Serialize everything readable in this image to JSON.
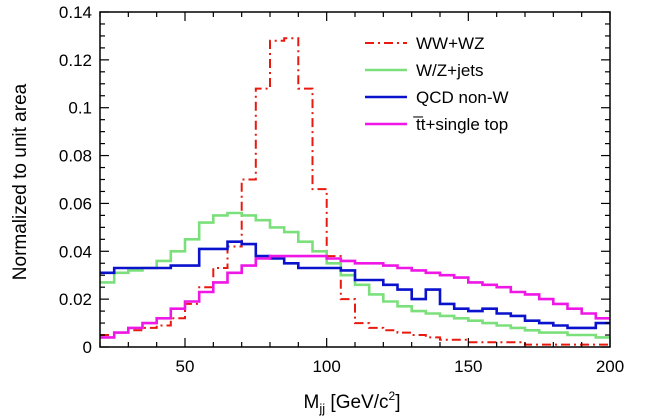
{
  "chart_data": {
    "type": "line",
    "xlabel": {
      "main": "M",
      "sub": "jj",
      "unit_pre": " [GeV/c",
      "unit_sup": "2",
      "unit_post": "]"
    },
    "ylabel": "Normalized to unit area",
    "xlim": [
      20,
      200
    ],
    "ylim": [
      0,
      0.14
    ],
    "xticks": [
      50,
      100,
      150,
      200
    ],
    "yticks": [
      0,
      0.02,
      0.04,
      0.06,
      0.08,
      0.1,
      0.12,
      0.14
    ],
    "xtick_labels": [
      "50",
      "100",
      "150",
      "200"
    ],
    "ytick_labels": [
      "0",
      "0.02",
      "0.04",
      "0.06",
      "0.08",
      "0.1",
      "0.12",
      "0.14"
    ],
    "grid": false,
    "legend_position": "top-right",
    "bin_edges": [
      20,
      25,
      30,
      35,
      40,
      45,
      50,
      55,
      60,
      65,
      70,
      75,
      80,
      85,
      90,
      95,
      100,
      105,
      110,
      115,
      120,
      125,
      130,
      135,
      140,
      145,
      150,
      155,
      160,
      165,
      170,
      175,
      180,
      185,
      190,
      195,
      200
    ],
    "series": [
      {
        "name": "WW+WZ",
        "color": "#e8190f",
        "style": "dashdot",
        "values": [
          0.005,
          0.006,
          0.007,
          0.008,
          0.009,
          0.012,
          0.018,
          0.025,
          0.033,
          0.042,
          0.07,
          0.108,
          0.128,
          0.129,
          0.108,
          0.066,
          0.038,
          0.02,
          0.01,
          0.008,
          0.007,
          0.006,
          0.005,
          0.004,
          0.003,
          0.003,
          0.002,
          0.002,
          0.002,
          0.002,
          0.001,
          0.001,
          0.001,
          0.001,
          0.001,
          0.001
        ]
      },
      {
        "name": "W/Z+jets",
        "color": "#7be07b",
        "style": "solid",
        "values": [
          0.027,
          0.031,
          0.032,
          0.033,
          0.036,
          0.04,
          0.045,
          0.052,
          0.055,
          0.056,
          0.055,
          0.053,
          0.05,
          0.048,
          0.044,
          0.04,
          0.035,
          0.03,
          0.026,
          0.022,
          0.019,
          0.017,
          0.015,
          0.014,
          0.013,
          0.012,
          0.011,
          0.01,
          0.009,
          0.008,
          0.007,
          0.006,
          0.006,
          0.005,
          0.005,
          0.004
        ]
      },
      {
        "name": "QCD non-W",
        "color": "#0a12cc",
        "style": "solid",
        "values": [
          0.031,
          0.033,
          0.033,
          0.033,
          0.033,
          0.034,
          0.034,
          0.041,
          0.041,
          0.044,
          0.043,
          0.038,
          0.037,
          0.035,
          0.033,
          0.033,
          0.033,
          0.032,
          0.028,
          0.028,
          0.026,
          0.024,
          0.02,
          0.024,
          0.018,
          0.016,
          0.015,
          0.016,
          0.014,
          0.013,
          0.011,
          0.01,
          0.009,
          0.008,
          0.008,
          0.01
        ]
      },
      {
        "name": "t̅t+single top",
        "color": "#ee17e6",
        "style": "solid",
        "values": [
          0.004,
          0.006,
          0.008,
          0.01,
          0.012,
          0.016,
          0.019,
          0.023,
          0.027,
          0.031,
          0.034,
          0.037,
          0.038,
          0.038,
          0.038,
          0.038,
          0.037,
          0.036,
          0.035,
          0.035,
          0.034,
          0.033,
          0.032,
          0.031,
          0.03,
          0.029,
          0.027,
          0.026,
          0.025,
          0.023,
          0.022,
          0.02,
          0.018,
          0.016,
          0.014,
          0.012
        ]
      }
    ]
  }
}
